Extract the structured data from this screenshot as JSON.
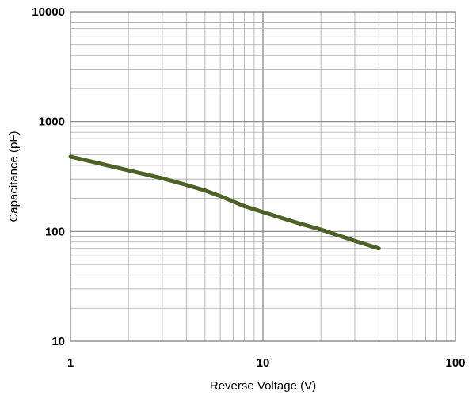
{
  "chart_data": {
    "type": "line",
    "title": "",
    "xlabel": "Reverse Voltage (V)",
    "ylabel": "Capacitance (pF)",
    "x_scale": "log",
    "y_scale": "log",
    "xlim": [
      1,
      100
    ],
    "ylim": [
      10,
      10000
    ],
    "x_ticks": [
      "1",
      "10",
      "100"
    ],
    "y_ticks": [
      "10",
      "100",
      "1000",
      "10000"
    ],
    "grid": true,
    "legend": "none",
    "series": [
      {
        "color": "#4e6228",
        "x": [
          1,
          2,
          3,
          4,
          5,
          6,
          8,
          10,
          15,
          20,
          30,
          40
        ],
        "y": [
          480,
          360,
          305,
          265,
          236,
          210,
          170,
          150,
          120,
          104,
          82,
          70
        ]
      }
    ]
  },
  "colors": {
    "grid": "#a6a6a6",
    "axis": "#808080"
  }
}
